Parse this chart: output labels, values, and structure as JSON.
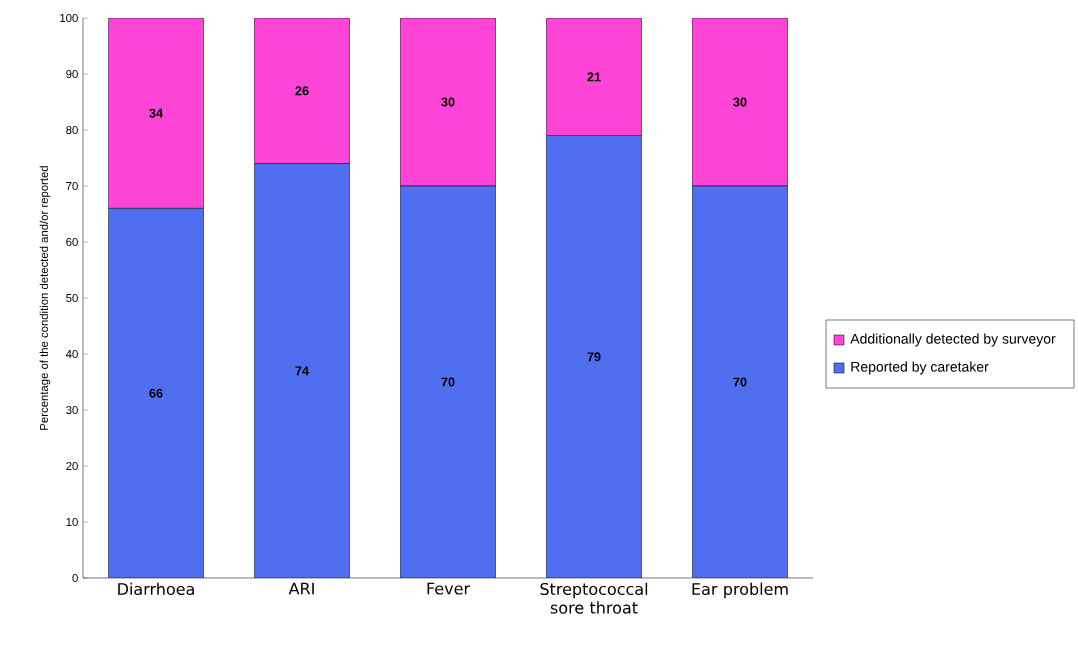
{
  "chart_data": {
    "type": "bar",
    "stacked": true,
    "ylabel": "Percentage of the condition detected and/or reported",
    "categories": [
      "Diarrhoea",
      "ARI",
      "Fever",
      "Streptococcal sore throat",
      "Ear problem"
    ],
    "series": [
      {
        "name": "Reported by caretaker",
        "color": "#4f6ff0",
        "values": [
          66,
          74,
          70,
          79,
          70
        ]
      },
      {
        "name": "Additionally detected by surveyor",
        "color": "#ff45d8",
        "values": [
          34,
          26,
          30,
          21,
          30
        ]
      }
    ],
    "ylim": [
      0,
      100
    ],
    "yticks": [
      0,
      10,
      20,
      30,
      40,
      50,
      60,
      70,
      80,
      90,
      100
    ],
    "data_labels": true,
    "legend": "right",
    "grid": false
  }
}
